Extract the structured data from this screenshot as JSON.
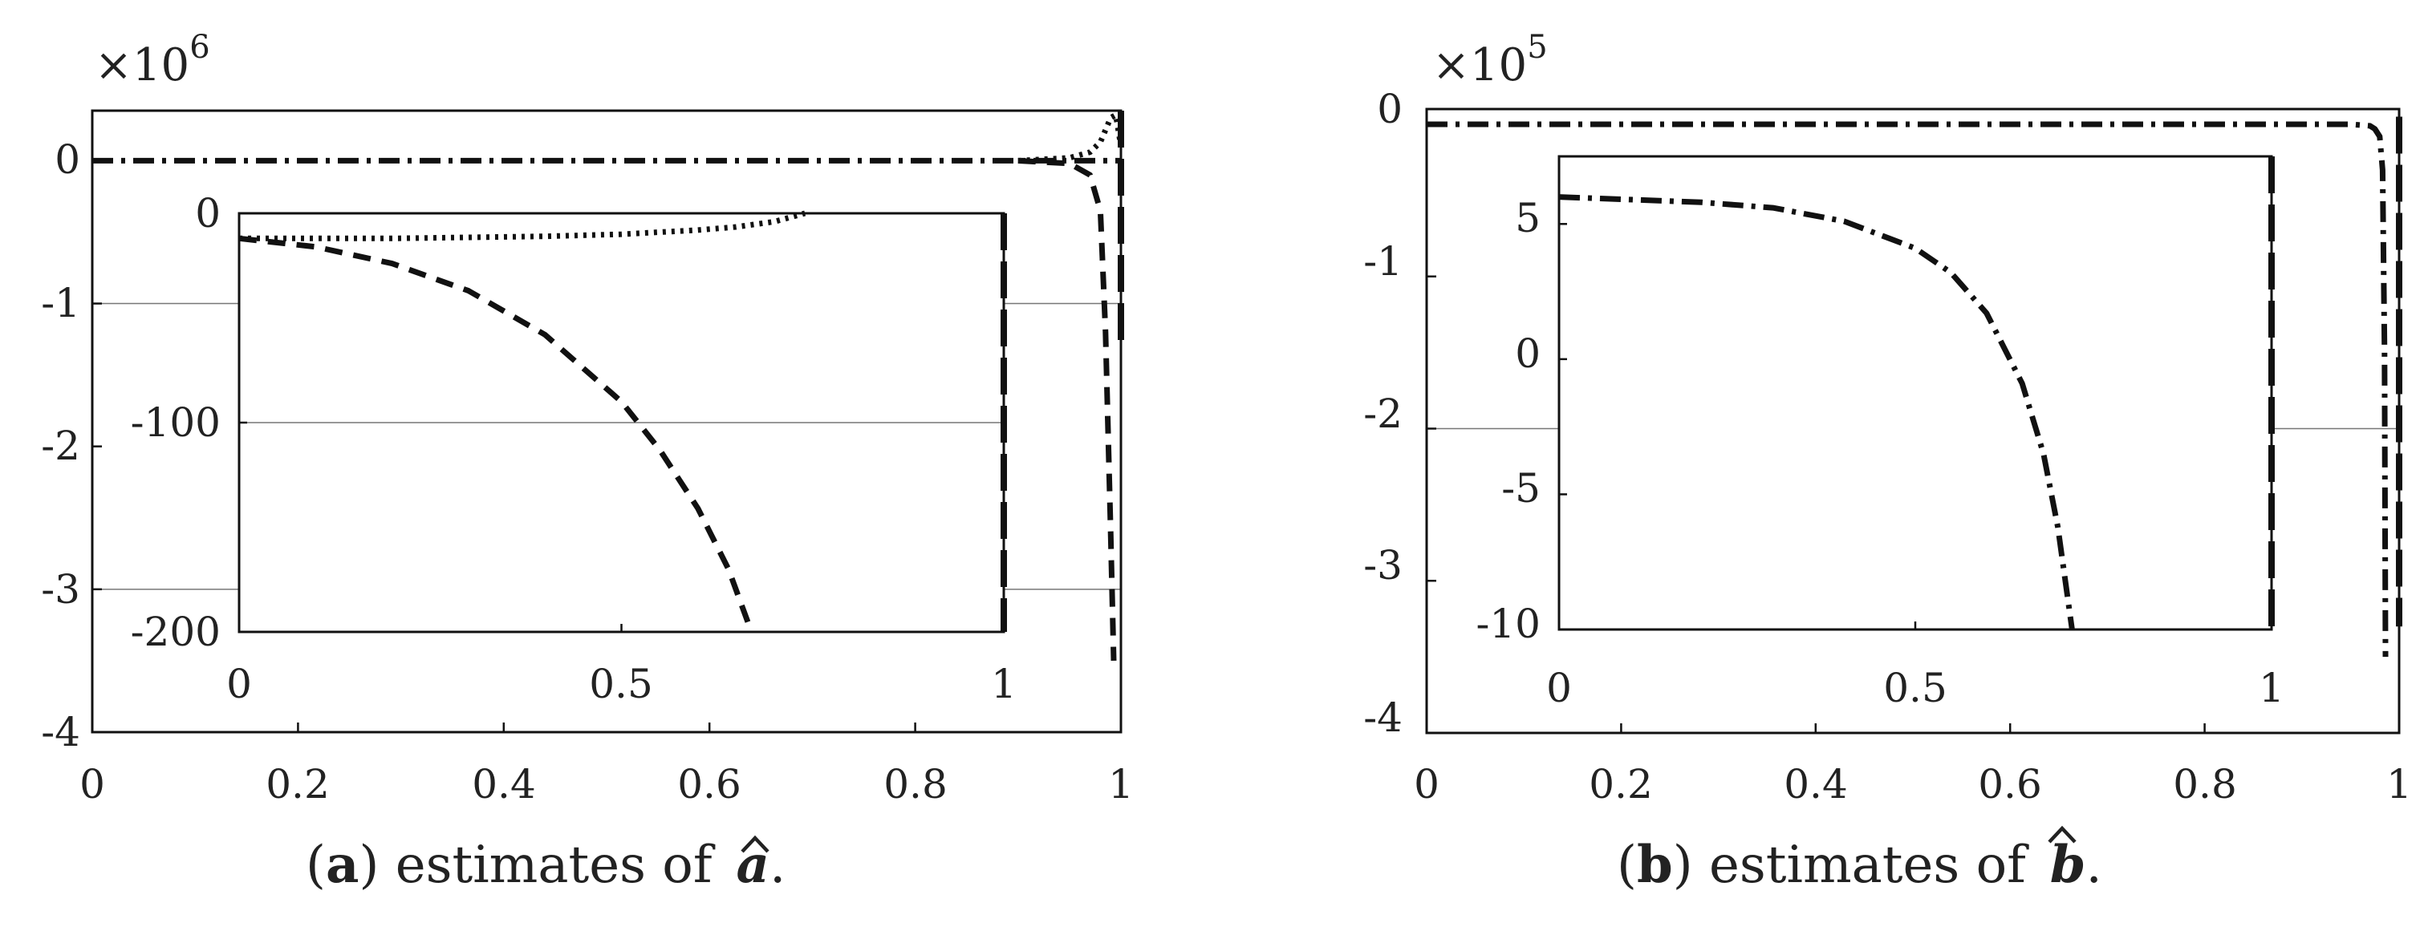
{
  "chart_data": [
    {
      "id": "a",
      "type": "line",
      "xlim": [
        0,
        1
      ],
      "ylim": [
        -4,
        0.35
      ],
      "x_ticks": [
        "0",
        "0.2",
        "0.4",
        "0.6",
        "0.8",
        "1"
      ],
      "y_ticks": [
        "0",
        "-1",
        "-2",
        "-3",
        "-4"
      ],
      "y_multiplier": {
        "base": "×10",
        "exp": "6"
      },
      "grid": "horizontal at -1 and -3",
      "caption": {
        "letter": "a",
        "text": ") estimates of",
        "symbol": "a",
        "end": "."
      },
      "series": [
        {
          "style": "dash-dot",
          "x": [
            0,
            0.5,
            0.9,
            0.95,
            0.97,
            0.98,
            0.99,
            1.0
          ],
          "y": [
            0,
            0,
            0,
            0,
            0,
            0,
            0,
            0
          ]
        },
        {
          "style": "dashed",
          "x": [
            0.9,
            0.95,
            0.97,
            0.98,
            0.985,
            0.99,
            0.993
          ],
          "y": [
            0,
            -0.02,
            -0.1,
            -0.35,
            -1.2,
            -2.6,
            -3.5
          ]
        },
        {
          "style": "dotted",
          "x": [
            0.9,
            0.95,
            0.97,
            0.98,
            0.99,
            0.995,
            1.0
          ],
          "y": [
            0,
            0.02,
            0.06,
            0.13,
            0.3,
            0.32,
            0.1
          ]
        },
        {
          "style": "long-dashed",
          "x": [
            1.0,
            1.0
          ],
          "y": [
            0.35,
            -1.3
          ]
        }
      ],
      "inset": {
        "xlim": [
          0,
          1
        ],
        "ylim": [
          -200,
          0
        ],
        "x_ticks": [
          "0",
          "0.5",
          "1"
        ],
        "y_ticks": [
          "0",
          "-100",
          "-200"
        ],
        "series": [
          {
            "style": "dashed",
            "x": [
              0,
              0.1,
              0.2,
              0.3,
              0.4,
              0.5,
              0.55,
              0.6,
              0.64,
              0.67
            ],
            "y": [
              -12,
              -16,
              -24,
              -37,
              -58,
              -90,
              -113,
              -141,
              -170,
              -200
            ]
          },
          {
            "style": "dotted",
            "x": [
              0,
              0.1,
              0.2,
              0.3,
              0.4,
              0.5,
              0.6,
              0.65,
              0.7,
              0.74
            ],
            "y": [
              -12,
              -12,
              -12,
              -11.5,
              -11,
              -10,
              -8,
              -6.5,
              -4,
              0
            ]
          },
          {
            "style": "long-dashed",
            "x": [
              1.0,
              1.0
            ],
            "y": [
              0,
              -200
            ]
          }
        ]
      }
    },
    {
      "id": "b",
      "type": "line",
      "xlim": [
        0,
        1
      ],
      "ylim": [
        -4,
        0.1
      ],
      "x_ticks": [
        "0",
        "0.2",
        "0.4",
        "0.6",
        "0.8",
        "1"
      ],
      "y_ticks": [
        "0",
        "-1",
        "-2",
        "-3",
        "-4"
      ],
      "y_multiplier": {
        "base": "×10",
        "exp": "5"
      },
      "grid": "horizontal at -2",
      "caption": {
        "letter": "b",
        "text": ") estimates of",
        "symbol": "b",
        "end": "."
      },
      "series": [
        {
          "style": "dash-dot",
          "x": [
            0,
            0.5,
            0.9,
            0.95,
            0.97,
            0.975,
            0.98,
            0.983,
            0.985,
            0.986
          ],
          "y": [
            0,
            0,
            0,
            0,
            -0.01,
            -0.03,
            -0.08,
            -0.3,
            -1.5,
            -3.5
          ]
        },
        {
          "style": "long-dashed",
          "x": [
            1.0,
            1.0
          ],
          "y": [
            0.05,
            -3.3
          ]
        }
      ],
      "inset": {
        "xlim": [
          0,
          1
        ],
        "ylim": [
          -10,
          7.5
        ],
        "x_ticks": [
          "0",
          "0.5",
          "1"
        ],
        "y_ticks": [
          "5",
          "0",
          "-5",
          "-10"
        ],
        "series": [
          {
            "style": "dash-dot",
            "x": [
              0,
              0.1,
              0.2,
              0.3,
              0.4,
              0.5,
              0.55,
              0.6,
              0.65,
              0.68,
              0.7,
              0.72
            ],
            "y": [
              6.0,
              5.9,
              5.8,
              5.6,
              5.1,
              4.1,
              3.2,
              1.7,
              -0.9,
              -3.5,
              -6.2,
              -10
            ]
          },
          {
            "style": "long-dashed",
            "x": [
              1.0,
              1.0
            ],
            "y": [
              7.5,
              -10
            ]
          }
        ]
      }
    }
  ]
}
